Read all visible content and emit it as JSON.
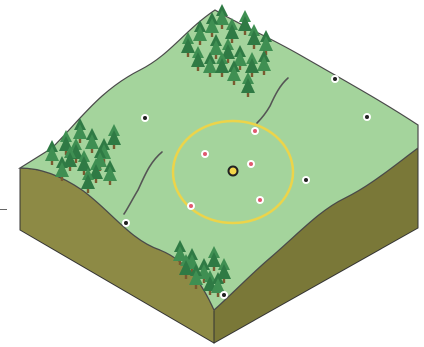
{
  "colors": {
    "grass": "#a4d49c",
    "grass_stroke": "#4a4a4a",
    "soil_front": "#8d8a45",
    "soil_side": "#7a7838",
    "tree_light": "#3f8f52",
    "tree_dark": "#2f7a44",
    "trunk": "#7a5a30",
    "ring": "#ecd44a",
    "target_fill": "#ffffff",
    "target_dot": "#e05a70",
    "marker_dot": "#222222",
    "player_fill": "#f2d64a",
    "player_stroke": "#222222",
    "river": "#555555"
  },
  "map": {
    "terrain": "isometric-grass-block",
    "forest_clusters": 4,
    "targets_in_ring": 5,
    "markers_outside_ring": 6,
    "player": "center"
  }
}
